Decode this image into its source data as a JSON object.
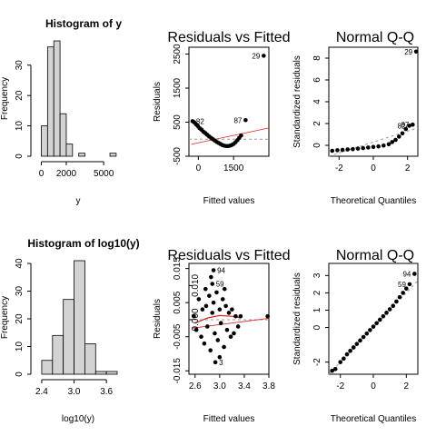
{
  "chart_data": [
    {
      "type": "bar",
      "title": "Histogram of y",
      "xlabel": "y",
      "ylabel": "Frequency",
      "bin_edges": [
        0,
        500,
        1000,
        1500,
        2000,
        2500,
        3000,
        3500,
        4000,
        4500,
        5000,
        5500,
        6000
      ],
      "values": [
        10,
        36,
        38,
        14,
        4,
        0,
        1,
        0,
        0,
        0,
        0,
        1
      ],
      "xlim": [
        -400,
        6300
      ],
      "ylim": [
        0,
        38
      ],
      "xticks": [
        0,
        2000,
        5000
      ],
      "yticks": [
        0,
        10,
        20,
        30
      ],
      "xtick_labels": [
        "0",
        "2000",
        "5000"
      ],
      "ytick_labels": [
        "0",
        "10",
        "20",
        "30"
      ],
      "bar_color": "#d3d3d3"
    },
    {
      "type": "scatter",
      "title": "Residuals vs Fitted",
      "xlabel": "Fitted values",
      "ylabel": "Residuals",
      "xlim": [
        -400,
        3000
      ],
      "ylim": [
        -500,
        2700
      ],
      "xticks": [
        0,
        1500
      ],
      "yticks": [
        -500,
        500,
        1500,
        2500
      ],
      "xtick_labels": [
        "0",
        "1500"
      ],
      "ytick_labels": [
        "-500",
        "500",
        "1500",
        "2500"
      ],
      "x": [
        -250,
        -180,
        -100,
        -20,
        60,
        140,
        220,
        300,
        380,
        460,
        540,
        620,
        700,
        780,
        860,
        940,
        1020,
        1100,
        1180,
        1260,
        1340,
        1420,
        1500,
        1580,
        1660,
        1740,
        1820,
        2010,
        2780
      ],
      "y": [
        530,
        500,
        440,
        390,
        320,
        280,
        220,
        180,
        130,
        80,
        40,
        0,
        -40,
        -80,
        -110,
        -140,
        -170,
        -190,
        -200,
        -200,
        -190,
        -170,
        -140,
        -90,
        -30,
        40,
        110,
        560,
        2450
      ],
      "point_labels": [
        {
          "index": 0,
          "text": "82"
        },
        {
          "index": 27,
          "text": "87"
        },
        {
          "index": 28,
          "text": "29"
        }
      ],
      "reference_line": 0,
      "trend_line": [
        [
          -300,
          -150
        ],
        [
          3000,
          330
        ]
      ],
      "smooth_curve": [
        [
          -250,
          500
        ],
        [
          0,
          300
        ],
        [
          300,
          120
        ],
        [
          600,
          -30
        ],
        [
          900,
          -140
        ],
        [
          1200,
          -190
        ],
        [
          1500,
          -160
        ],
        [
          1700,
          -60
        ],
        [
          1850,
          100
        ]
      ],
      "smooth_color": "#dd2222"
    },
    {
      "type": "scatter",
      "title": "Normal Q-Q",
      "xlabel": "Theoretical Quantiles",
      "ylabel": "Standardized residuals",
      "xlim": [
        -2.6,
        2.6
      ],
      "ylim": [
        -1,
        9
      ],
      "xticks": [
        -2,
        0,
        2
      ],
      "yticks": [
        0,
        2,
        4,
        6,
        8
      ],
      "xtick_labels": [
        "-2",
        "0",
        "2"
      ],
      "ytick_labels": [
        "0",
        "2",
        "4",
        "6",
        "8"
      ],
      "x": [
        -2.4,
        -2.1,
        -1.8,
        -1.5,
        -1.2,
        -0.9,
        -0.6,
        -0.3,
        0.0,
        0.3,
        0.6,
        0.9,
        1.1,
        1.3,
        1.5,
        1.7,
        1.9,
        2.1,
        2.3,
        2.5
      ],
      "y": [
        -0.5,
        -0.45,
        -0.42,
        -0.38,
        -0.35,
        -0.3,
        -0.25,
        -0.2,
        -0.15,
        -0.1,
        -0.02,
        0.1,
        0.3,
        0.5,
        0.8,
        1.1,
        1.5,
        1.8,
        1.9,
        8.6
      ],
      "point_labels": [
        {
          "index": 19,
          "text": "29"
        },
        {
          "index": 18,
          "text": "87"
        },
        {
          "index": 17,
          "text": "82"
        }
      ],
      "qq_line": [
        [
          -2.6,
          -1.0
        ],
        [
          2.6,
          1.6
        ]
      ]
    },
    {
      "type": "bar",
      "title": "Histogram of log10(y)",
      "xlabel": "log10(y)",
      "ylabel": "Frequency",
      "bin_edges": [
        2.4,
        2.6,
        2.8,
        3.0,
        3.2,
        3.4,
        3.6,
        3.8
      ],
      "values": [
        5,
        14,
        27,
        41,
        11,
        1,
        1
      ],
      "xlim": [
        2.3,
        3.85
      ],
      "ylim": [
        0,
        41
      ],
      "xticks": [
        2.4,
        3.0,
        3.6
      ],
      "yticks": [
        0,
        10,
        20,
        30,
        40
      ],
      "xtick_labels": [
        "2.4",
        "3.0",
        "3.6"
      ],
      "ytick_labels": [
        "0",
        "10",
        "20",
        "30",
        "40"
      ],
      "bar_color": "#d3d3d3"
    },
    {
      "type": "scatter",
      "title": "Residuals vs Fitted",
      "xlabel": "Fitted values",
      "ylabel": "Residuals",
      "xlim": [
        2.5,
        3.8
      ],
      "ylim": [
        -0.016,
        0.0165
      ],
      "xticks": [
        2.6,
        3.0,
        3.4,
        3.8
      ],
      "xtick_labels": [
        "2.6",
        "3.0",
        "3.4",
        "3.8"
      ],
      "yticks": [
        -0.015,
        -0.005,
        0.005,
        0.015
      ],
      "ytick_labels": [
        "-0.015",
        "-0.005",
        "0.005",
        "0.015"
      ],
      "yticks_right": [
        0.0,
        0.01
      ],
      "ytick_labels_right": [
        "0.000",
        "0.010"
      ],
      "x": [
        2.58,
        2.62,
        2.66,
        2.7,
        2.72,
        2.75,
        2.78,
        2.8,
        2.83,
        2.85,
        2.88,
        2.9,
        2.92,
        2.95,
        2.97,
        3.0,
        3.02,
        3.05,
        3.07,
        3.1,
        3.12,
        3.15,
        3.18,
        3.2,
        3.23,
        3.26,
        3.3,
        3.34,
        3.78,
        2.88,
        2.9,
        2.86,
        2.93,
        3.0,
        3.08,
        2.77
      ],
      "y": [
        0.001,
        -0.003,
        0.006,
        -0.005,
        0.003,
        -0.007,
        0.004,
        -0.002,
        0.007,
        -0.009,
        0.002,
        0.005,
        -0.004,
        0.008,
        -0.006,
        0.003,
        -0.001,
        0.006,
        -0.008,
        0.004,
        -0.003,
        0.002,
        -0.005,
        0.003,
        -0.004,
        0.001,
        -0.002,
        0.001,
        0.001,
        0.0105,
        0.0145,
        0.0125,
        -0.0125,
        -0.011,
        0.009,
        0.009
      ],
      "point_labels": [
        {
          "index": 30,
          "text": "94"
        },
        {
          "index": 29,
          "text": "59"
        },
        {
          "index": 32,
          "text": "3"
        }
      ],
      "reference_line": 0,
      "trend_line": [
        [
          2.55,
          -0.0025
        ],
        [
          3.8,
          0.0004
        ]
      ],
      "smooth_curve": [
        [
          2.6,
          -0.001
        ],
        [
          2.8,
          0.0005
        ],
        [
          3.0,
          0.0012
        ],
        [
          3.2,
          0.001
        ],
        [
          3.35,
          0.0005
        ]
      ],
      "smooth_color": "#dd2222"
    },
    {
      "type": "scatter",
      "title": "Normal Q-Q",
      "xlabel": "Theoretical Quantiles",
      "ylabel": "Standardized residuals",
      "xlim": [
        -2.7,
        2.7
      ],
      "ylim": [
        -2.7,
        3.7
      ],
      "xticks": [
        -2,
        0,
        2
      ],
      "yticks": [
        -2,
        0,
        1,
        2,
        3
      ],
      "xtick_labels": [
        "-2",
        "0",
        "2"
      ],
      "ytick_labels": [
        "-2",
        "0",
        "1",
        "2",
        "3"
      ],
      "x": [
        -2.5,
        -2.3,
        -2.0,
        -1.8,
        -1.6,
        -1.4,
        -1.2,
        -1.0,
        -0.8,
        -0.6,
        -0.4,
        -0.2,
        0.0,
        0.2,
        0.4,
        0.6,
        0.8,
        1.0,
        1.2,
        1.4,
        1.6,
        1.8,
        2.0,
        2.2,
        2.5
      ],
      "y": [
        -2.5,
        -2.4,
        -2.0,
        -1.8,
        -1.55,
        -1.35,
        -1.15,
        -0.95,
        -0.75,
        -0.55,
        -0.35,
        -0.15,
        0.05,
        0.25,
        0.45,
        0.65,
        0.85,
        1.05,
        1.25,
        1.5,
        1.75,
        2.0,
        2.25,
        2.5,
        3.1
      ],
      "point_labels": [
        {
          "index": 24,
          "text": "94"
        },
        {
          "index": 23,
          "text": "59"
        }
      ],
      "qq_line": [
        [
          -2.7,
          -2.7
        ],
        [
          2.7,
          2.7
        ]
      ]
    }
  ]
}
